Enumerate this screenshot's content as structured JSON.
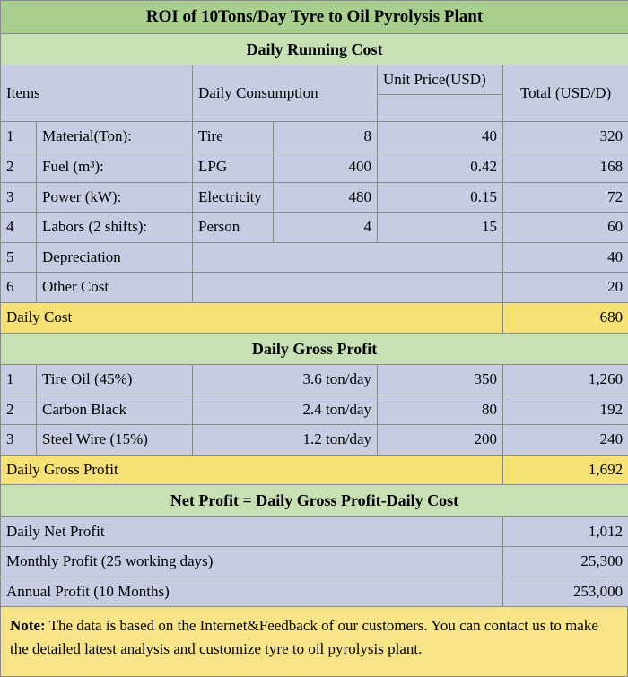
{
  "title": "ROI of 10Tons/Day Tyre to Oil Pyrolysis Plant",
  "sections": {
    "cost": "Daily Running Cost",
    "gross": "Daily Gross Profit",
    "net": "Net Profit = Daily Gross Profit-Daily Cost"
  },
  "headers": {
    "items": "Items",
    "consumption": "Daily Consumption",
    "unitprice": "Unit Price(USD)",
    "total": "Total (USD/D)"
  },
  "cost": {
    "r1": {
      "n": "1",
      "item": "Material(Ton):",
      "type": "Tire",
      "qty": "8",
      "price": "40",
      "total": "320"
    },
    "r2": {
      "n": "2",
      "item": "Fuel (m³):",
      "type": "LPG",
      "qty": "400",
      "price": "0.42",
      "total": "168"
    },
    "r3": {
      "n": "3",
      "item": "Power (kW):",
      "type": "Electricity",
      "qty": "480",
      "price": "0.15",
      "total": "72"
    },
    "r4": {
      "n": "4",
      "item": "Labors (2 shifts):",
      "type": "Person",
      "qty": "4",
      "price": "15",
      "total": "60"
    },
    "r5": {
      "n": "5",
      "item": "Depreciation",
      "total": "40"
    },
    "r6": {
      "n": "6",
      "item": "Other Cost",
      "total": "20"
    },
    "sumlabel": "Daily Cost",
    "sum": "680"
  },
  "gross": {
    "r1": {
      "n": "1",
      "item": "Tire Oil (45%)",
      "qty": "3.6 ton/day",
      "price": "350",
      "total": "1,260"
    },
    "r2": {
      "n": "2",
      "item": "Carbon Black",
      "qty": "2.4 ton/day",
      "price": "80",
      "total": "192"
    },
    "r3": {
      "n": "3",
      "item": "Steel Wire (15%)",
      "qty": "1.2 ton/day",
      "price": "200",
      "total": "240"
    },
    "sumlabel": "Daily Gross Profit",
    "sum": "1,692"
  },
  "net": {
    "r1": {
      "label": "Daily Net Profit",
      "val": "1,012"
    },
    "r2": {
      "label": "Monthly Profit (25 working days)",
      "val": "25,300"
    },
    "r3": {
      "label": "Annual Profit (10 Months)",
      "val": "253,000"
    }
  },
  "note": {
    "bold": "Note:",
    "text": " The data is based on the Internet&Feedback of our customers. You can contact us to make the detailed latest analysis and customize tyre to oil pyrolysis plant."
  },
  "colors": {
    "title_bg": "#a9cf8f",
    "section_bg": "#c7e0b4",
    "blue_bg": "#c6cce2",
    "yellow_bg": "#f6e274",
    "note_bg": "#f6e487",
    "border": "#8a8a8a"
  }
}
